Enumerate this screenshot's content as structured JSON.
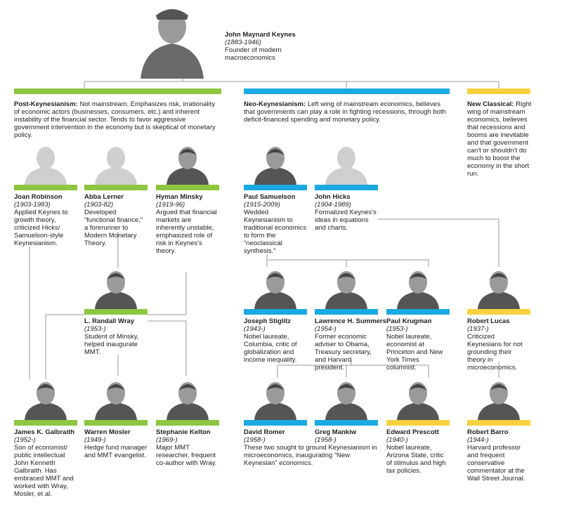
{
  "root": {
    "name": "John Maynard Keynes",
    "years": "(1883-1946)",
    "description": "Founder of modern macroeconomics"
  },
  "schools": [
    {
      "label": "Post-Keynesianism:",
      "text": "Not mainstream. Emphasizes risk, irrationality of economic actors (businesses, consumers, etc.) and inherent instability of the financial sector. Tends to favor aggressive government intervention in the economy but is skeptical of monetary policy.",
      "color": "#8dc63f"
    },
    {
      "label": "Neo-Keynesianism:",
      "text": "Left wing of mainstream economics, believes that governments can play a role in fighting recessions, through both deficit-financed spending and monetary policy.",
      "color": "#1ba9e1"
    },
    {
      "label": "New Classical:",
      "text": "Right wing of mainstream economics, believes that recessions and booms are inevitable and that government can't or shouldn't do much to boost the economy in the short run.",
      "color": "#f7d23e"
    }
  ],
  "people": [
    {
      "name": "Joan Robinson",
      "years": "(1903-1983)",
      "description": "Applied Keynes to growth theory, criticized Hicks/ Samuelson-style Keynesianism.",
      "color": "#8dc63f"
    },
    {
      "name": "Abba Lerner",
      "years": "(1903-82)",
      "description": "Developed “functional finance,” a forerunner to Modern Monetary Theory.",
      "color": "#8dc63f"
    },
    {
      "name": "Hyman Minsky",
      "years": "(1919-96)",
      "description": "Argued that financial markets are inherently unstable, emphasized role of risk in Keynes's theory.",
      "color": "#8dc63f"
    },
    {
      "name": "Paul Samuelson",
      "years": "(1915-2009)",
      "description": "Wedded Keynesianism to traditional economics to form the “neoclassical synthesis.”",
      "color": "#1ba9e1"
    },
    {
      "name": "John Hicks",
      "years": "(1904-1989)",
      "description": "Formalized Keynes's ideas in equations and charts.",
      "color": "#1ba9e1"
    },
    {
      "name": "L. Randall Wray",
      "years": "(1953-)",
      "description": "Student of Minsky, helped inaugurate MMT.",
      "color": "#8dc63f"
    },
    {
      "name": "Joseph Stiglitz",
      "years": "(1943-)",
      "description": "Nobel laureate, Columbia, critic of globalization and income inequality.",
      "color": "#1ba9e1"
    },
    {
      "name": "Lawrence H. Summers",
      "years": "(1954-)",
      "description": "Former economic adviser to Obama, Treasury secretary, and Harvard president.",
      "color": "#1ba9e1"
    },
    {
      "name": "Paul Krugman",
      "years": "(1953-)",
      "description": "Nobel laureate, economist at Princeton and New York Times columnist.",
      "color": "#1ba9e1"
    },
    {
      "name": "Robert Lucas",
      "years": "(1937-)",
      "description": "Criticized Keynesians for not grounding their theory in microeconomics.",
      "color": "#f7d23e"
    },
    {
      "name": "James K. Galbraith",
      "years": "(1952-)",
      "description": "Son of economist/ public intellectual John Kenneth Galbraith. Has embraced MMT and worked with Wray, Mosler, et al.",
      "color": "#8dc63f"
    },
    {
      "name": "Warren Mosler",
      "years": "(1949-)",
      "description": "Hedge fund manager and MMT evangelist.",
      "color": "#8dc63f"
    },
    {
      "name": "Stephanie Kelton",
      "years": "(1969-)",
      "description": "Major MMT researcher, frequent co-author with Wray.",
      "color": "#8dc63f"
    },
    {
      "name": "David Romer",
      "years": "(1958-)",
      "description": "These two sought to ground Keynesianism in microeconomics, inaugurating “New Keynesian” economics.",
      "color": "#1ba9e1"
    },
    {
      "name": "Greg Mankiw",
      "years": "(1958-)",
      "color": "#1ba9e1"
    },
    {
      "name": "Edward Prescott",
      "years": "(1940-)",
      "description": "Nobel laureate, Arizona State, critic of stimulus and high tax policies.",
      "color": "#f7d23e"
    },
    {
      "name": "Robert Barro",
      "years": "(1944-)",
      "description": "Harvard professor and frequent conservative commentator at the Wall Street Journal.",
      "color": "#f7d23e"
    }
  ]
}
